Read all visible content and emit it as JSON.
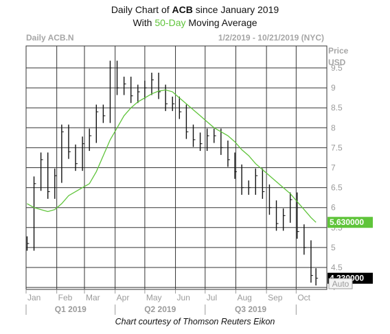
{
  "header": {
    "title_prefix": "Daily Chart of ",
    "title_symbol": "ACB",
    "title_suffix": " since January 2019",
    "subtitle_prefix": "With ",
    "subtitle_highlight": "50-Day",
    "subtitle_suffix": " Moving Average"
  },
  "credit": "Chart courtesy of Thomson Reuters Eikon",
  "chart_data": {
    "type": "line",
    "symbol_label": "Daily ACB.N",
    "date_range_label": "1/2/2019 - 10/21/2019 (NYC)",
    "ylabel_line1": "Price",
    "ylabel_line2": "USD",
    "ylim": [
      3.95,
      10.05
    ],
    "y_ticks": [
      {
        "value": 9.5,
        "label": "9.5"
      },
      {
        "value": 9,
        "label": "9"
      },
      {
        "value": 8.5,
        "label": "8.5"
      },
      {
        "value": 8,
        "label": "8"
      },
      {
        "value": 7.5,
        "label": "7.5"
      },
      {
        "value": 7,
        "label": "7"
      },
      {
        "value": 6.5,
        "label": "6.5"
      },
      {
        "value": 6,
        "label": "6"
      },
      {
        "value": 5.5,
        "label": "5.5"
      },
      {
        "value": 5,
        "label": "5"
      },
      {
        "value": 4.5,
        "label": "4.5"
      },
      {
        "value": 4,
        "label": "4"
      }
    ],
    "grid": true,
    "months": [
      "Jan",
      "Feb",
      "Mar",
      "Apr",
      "May",
      "Jun",
      "Jul",
      "Aug",
      "Sep",
      "Oct"
    ],
    "quarters": [
      "Q1 2019",
      "Q2 2019",
      "Q3 2019"
    ],
    "auto_label": "Auto",
    "series": [
      {
        "name": "Daily ACB.N",
        "style": "price-bars",
        "color": "#111111",
        "x": [
          "2019-01-02",
          "2019-01-09",
          "2019-01-16",
          "2019-01-23",
          "2019-01-30",
          "2019-02-06",
          "2019-02-13",
          "2019-02-20",
          "2019-02-27",
          "2019-03-06",
          "2019-03-13",
          "2019-03-20",
          "2019-03-27",
          "2019-04-03",
          "2019-04-10",
          "2019-04-17",
          "2019-04-24",
          "2019-05-01",
          "2019-05-08",
          "2019-05-15",
          "2019-05-22",
          "2019-05-29",
          "2019-06-05",
          "2019-06-12",
          "2019-06-19",
          "2019-06-26",
          "2019-07-03",
          "2019-07-10",
          "2019-07-17",
          "2019-07-24",
          "2019-07-31",
          "2019-08-07",
          "2019-08-14",
          "2019-08-21",
          "2019-08-28",
          "2019-09-04",
          "2019-09-11",
          "2019-09-18",
          "2019-09-25",
          "2019-10-02",
          "2019-10-09",
          "2019-10-16",
          "2019-10-21"
        ],
        "values": [
          5.1,
          6.6,
          7.2,
          6.4,
          6.8,
          7.9,
          7.4,
          7.1,
          7.6,
          7.8,
          8.4,
          8.3,
          9.5,
          9.0,
          9.1,
          8.8,
          8.9,
          9.0,
          9.2,
          8.9,
          8.6,
          8.6,
          8.4,
          7.9,
          7.7,
          7.6,
          7.8,
          7.8,
          7.5,
          7.2,
          6.9,
          6.5,
          6.5,
          6.8,
          6.4,
          6.0,
          5.6,
          5.8,
          6.2,
          5.4,
          5.0,
          4.3,
          4.23
        ]
      },
      {
        "name": "50-Day",
        "style": "line",
        "color": "#5fc43a",
        "x": [
          "2019-01-02",
          "2019-01-09",
          "2019-01-16",
          "2019-01-23",
          "2019-01-30",
          "2019-02-06",
          "2019-02-13",
          "2019-02-20",
          "2019-02-27",
          "2019-03-06",
          "2019-03-13",
          "2019-03-20",
          "2019-03-27",
          "2019-04-03",
          "2019-04-10",
          "2019-04-17",
          "2019-04-24",
          "2019-05-01",
          "2019-05-08",
          "2019-05-15",
          "2019-05-22",
          "2019-05-29",
          "2019-06-05",
          "2019-06-12",
          "2019-06-19",
          "2019-06-26",
          "2019-07-03",
          "2019-07-10",
          "2019-07-17",
          "2019-07-24",
          "2019-07-31",
          "2019-08-07",
          "2019-08-14",
          "2019-08-21",
          "2019-08-28",
          "2019-09-04",
          "2019-09-11",
          "2019-09-18",
          "2019-09-25",
          "2019-10-02",
          "2019-10-09",
          "2019-10-16",
          "2019-10-21"
        ],
        "values": [
          6.1,
          6.0,
          5.95,
          5.9,
          5.95,
          6.1,
          6.3,
          6.4,
          6.5,
          6.6,
          6.9,
          7.3,
          7.7,
          8.0,
          8.3,
          8.5,
          8.65,
          8.75,
          8.85,
          8.92,
          8.95,
          8.9,
          8.75,
          8.6,
          8.45,
          8.3,
          8.15,
          8.0,
          7.9,
          7.8,
          7.65,
          7.45,
          7.3,
          7.1,
          6.95,
          6.8,
          6.65,
          6.5,
          6.35,
          6.15,
          5.95,
          5.75,
          5.63
        ]
      }
    ],
    "last_price_tags": [
      {
        "series": "50-Day",
        "label": "5.630000",
        "value": 5.63,
        "bg": "#5fc43a",
        "fg": "#ffffff"
      },
      {
        "series": "Daily ACB.N",
        "label": "4.230000",
        "value": 4.23,
        "bg": "#000000",
        "fg": "#ffffff"
      }
    ]
  }
}
